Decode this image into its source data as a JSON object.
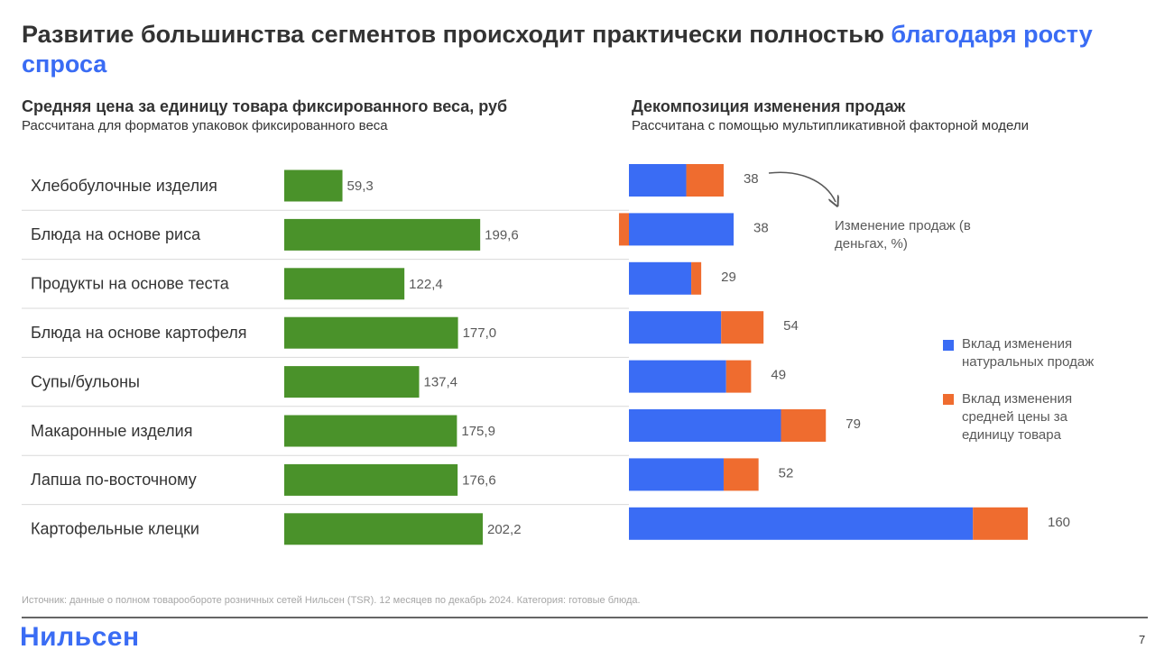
{
  "title": "Развитие большинства сегментов происходит практически полностью",
  "title_highlight": "благодаря росту спроса",
  "chart_data": [
    {
      "type": "bar",
      "orientation": "horizontal",
      "title": "Средняя цена за единицу товара фиксированного веса, руб",
      "subtitle": "Рассчитана для форматов упаковок фиксированного веса",
      "categories": [
        "Хлебобулочные изделия",
        "Блюда на основе риса",
        "Продукты на основе теста",
        "Блюда на основе картофеля",
        "Супы/бульоны",
        "Макаронные изделия",
        "Лапша по-восточному",
        "Картофельные клецки"
      ],
      "values": [
        59.3,
        199.6,
        122.4,
        177.0,
        137.4,
        175.9,
        176.6,
        202.2
      ],
      "value_labels": [
        "59,3",
        "199,6",
        "122,4",
        "177,0",
        "137,4",
        "175,9",
        "176,6",
        "202,2"
      ],
      "color": "#4a922a"
    },
    {
      "type": "stacked_bar",
      "orientation": "horizontal",
      "title": "Декомпозиция изменения продаж",
      "subtitle": "Рассчитана с помощью мультипликативной факторной модели",
      "annotation": "Изменение продаж (в деньгах, %)",
      "series": [
        {
          "name": "Вклад изменения натуральных продаж",
          "color": "#3a6cf4",
          "values": [
            23,
            42,
            25,
            37,
            39,
            61,
            38,
            138
          ]
        },
        {
          "name": "Вклад изменения средней цены за единицу товара",
          "color": "#ef6c2f",
          "values": [
            15,
            -4,
            4,
            17,
            10,
            18,
            14,
            22
          ]
        }
      ],
      "totals": [
        38,
        38,
        29,
        54,
        49,
        79,
        52,
        160
      ]
    }
  ],
  "footer": {
    "source": "Источник: данные о полном товарообороте розничных сетей Нильсен (TSR). 12 месяцев по декабрь 2024. Категория: готовые блюда.",
    "logo": "Нильсен",
    "page": "7"
  }
}
